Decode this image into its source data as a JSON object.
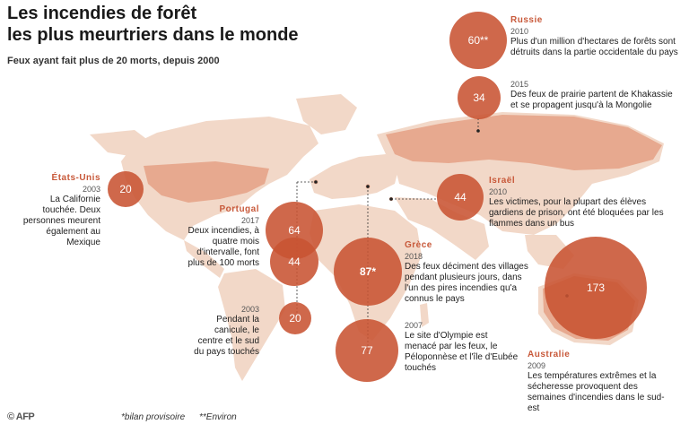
{
  "title": {
    "line1": "Les incendies de forêt",
    "line2": "les plus meurtriers dans le monde"
  },
  "subtitle": "Feux ayant fait plus de 20 morts, depuis 2000",
  "colors": {
    "accent": "#c8593a",
    "land": "#f2d8c8",
    "bubble": "#c85332"
  },
  "events": {
    "russie": {
      "country": "Russie",
      "entries": [
        {
          "year": "2010",
          "value": "60**",
          "desc": "Plus d'un million d'hectares de forêts sont détruits dans la partie occidentale du pays"
        },
        {
          "year": "2015",
          "value": "34",
          "desc": "Des feux de prairie partent de Khakassie et se propagent jusqu'à la Mongolie"
        }
      ]
    },
    "etats_unis": {
      "country": "États-Unis",
      "entries": [
        {
          "year": "2003",
          "value": "20",
          "desc": "La Californie touchée. Deux personnes meurent également au Mexique"
        }
      ]
    },
    "portugal": {
      "country": "Portugal",
      "entries": [
        {
          "year": "2017",
          "value": "64",
          "value2": "44",
          "desc": "Deux incendies, à quatre mois d'intervalle, font plus de 100 morts"
        },
        {
          "year": "2003",
          "value": "20",
          "desc": "Pendant la canicule, le centre et le sud du pays touchés"
        }
      ]
    },
    "israel": {
      "country": "Israël",
      "entries": [
        {
          "year": "2010",
          "value": "44",
          "desc": "Les victimes, pour la plupart des élèves gardiens de prison, ont été bloquées par les flammes dans un bus"
        }
      ]
    },
    "grece": {
      "country": "Grèce",
      "entries": [
        {
          "year": "2018",
          "value": "87*",
          "desc": "Des feux déciment des villages pendant plusieurs jours, dans l'un des pires incendies qu'a connus le pays"
        },
        {
          "year": "2007",
          "value": "77",
          "desc": "Le site d'Olympie est menacé par les feux, le Péloponnèse et l'île d'Eubée touchés"
        }
      ]
    },
    "australie": {
      "country": "Australie",
      "entries": [
        {
          "year": "2009",
          "value": "173",
          "desc": "Les températures extrêmes et la sécheresse provoquent des semaines d'incendies dans le sud-est"
        }
      ]
    }
  },
  "footer": {
    "source": "© AFP",
    "note1": "*bilan provisoire",
    "note2": "**Environ"
  }
}
